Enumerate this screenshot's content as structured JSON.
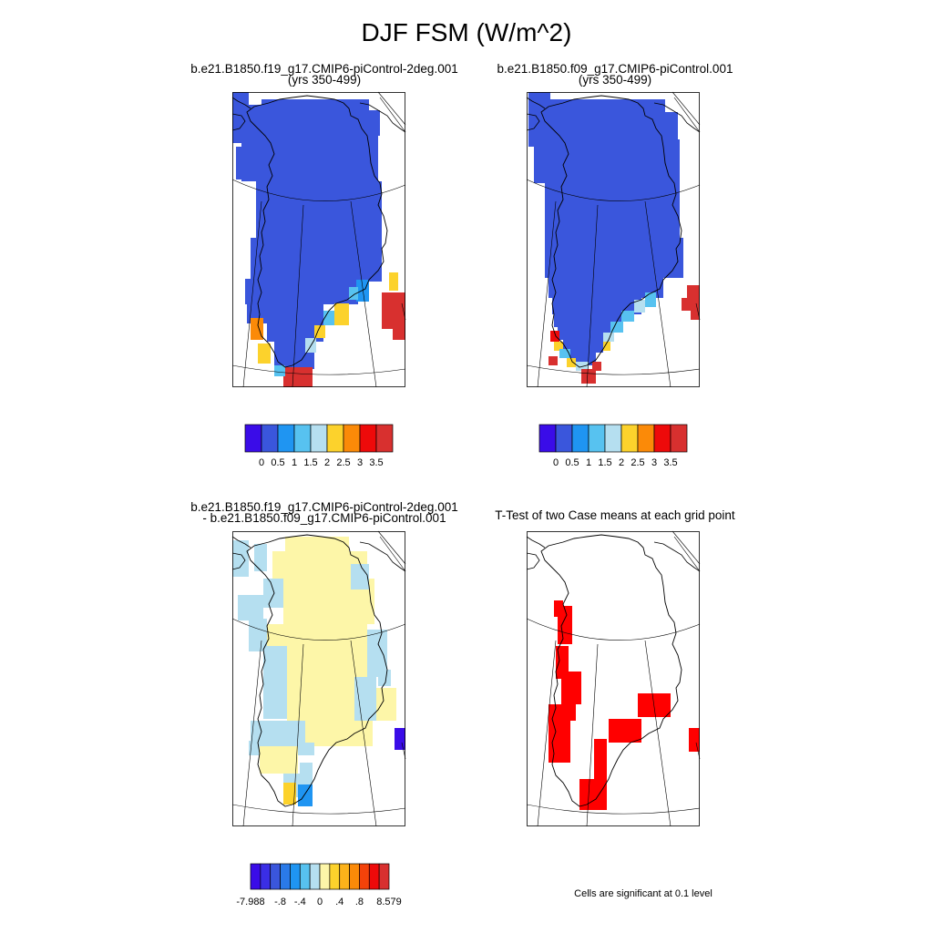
{
  "title": "DJF FSM (W/m^2)",
  "panels": {
    "case1": {
      "title_line1": "b.e21.B1850.f19_g17.CMIP6-piControl-2deg.001",
      "title_line2": "(yrs 350-499)"
    },
    "case2": {
      "title_line1": "b.e21.B1850.f09_g17.CMIP6-piControl.001",
      "title_line2": "(yrs 350-499)"
    },
    "diff": {
      "title_line1": "b.e21.B1850.f19_g17.CMIP6-piControl-2deg.001",
      "title_line2": "- b.e21.B1850.f09_g17.CMIP6-piControl.001"
    },
    "ttest": {
      "title": "T-Test of two Case means at each grid point",
      "note": "Cells are significant at 0.1 level"
    }
  },
  "colorbars": {
    "cases": {
      "colors": [
        "#3a0ce8",
        "#3a56dc",
        "#1f95f2",
        "#57c2f0",
        "#b5dff0",
        "#fcd22c",
        "#fb8a08",
        "#ee0a0a",
        "#d8302f"
      ],
      "labels": [
        "0",
        "0.5",
        "1",
        "1.5",
        "2",
        "2.5",
        "3",
        "3.5"
      ]
    },
    "diff": {
      "colors": [
        "#3a0ce8",
        "#3a2ee6",
        "#3a56dc",
        "#2a7ae8",
        "#1f95f2",
        "#57c2f0",
        "#b5dff0",
        "#fdf6a8",
        "#fcd22c",
        "#fcb21a",
        "#fb8a08",
        "#f4420a",
        "#ee0a0a",
        "#d8302f"
      ],
      "labels": [
        "-7.988",
        "-.8",
        "-.4",
        "0",
        ".4",
        ".8",
        "8.579"
      ]
    }
  },
  "map_colors": {
    "fill_blue": "#3a56dc",
    "ttest_red": "#ff0000"
  }
}
